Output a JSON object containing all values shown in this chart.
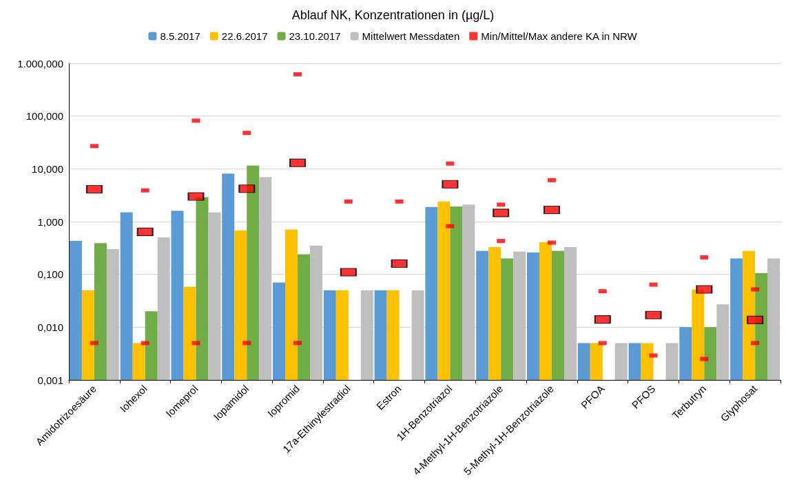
{
  "chart_data": {
    "type": "bar",
    "title": "Ablauf NK, Konzentrationen in (µg/L)",
    "categories": [
      "Amidotrizoesäure",
      "Iohexol",
      "Iomeprol",
      "Iopamidol",
      "Iopromid",
      "17a-Ethinylestradiol",
      "Estron",
      "1H-Benzotriazol",
      "4-Methyl-1H-Benzotriazole",
      "5-Methyl-1H-Benzotriazole",
      "PFOA",
      "PFOS",
      "Terbutryn",
      "Glyphosat"
    ],
    "series": [
      {
        "name": "8.5.2017",
        "color": "#5b9bd5",
        "values": [
          0.43,
          1.5,
          1.6,
          8.1,
          0.07,
          0.05,
          0.05,
          1.9,
          0.28,
          0.26,
          0.005,
          0.005,
          0.01,
          0.2
        ]
      },
      {
        "name": "22.6.2017",
        "color": "#ffc000",
        "values": [
          0.05,
          0.005,
          0.058,
          0.68,
          0.71,
          0.05,
          0.05,
          2.4,
          0.33,
          0.41,
          0.005,
          0.005,
          0.052,
          0.28
        ]
      },
      {
        "name": "23.10.2017",
        "color": "#70ad47",
        "values": [
          0.39,
          0.02,
          2.9,
          11.6,
          0.24,
          null,
          null,
          1.94,
          0.2,
          0.28,
          null,
          null,
          0.01,
          0.106
        ]
      },
      {
        "name": "Mittelwert Messdaten",
        "color": "#bfbfbf",
        "values": [
          0.3,
          0.5,
          1.5,
          7.0,
          0.35,
          0.05,
          0.05,
          2.1,
          0.27,
          0.33,
          0.005,
          0.005,
          0.027,
          0.2
        ]
      },
      {
        "name": "Min/Mittel/Max andere KA in NRW",
        "type": "scatter",
        "color": "#ff0000",
        "x": [
          "Amidotrizoesäure",
          "Amidotrizoesäure",
          "Iohexol",
          "Iohexol",
          "Iomeprol",
          "Iomeprol",
          "Iopamidol",
          "Iopamidol",
          "Iopromid",
          "Iopromid",
          "17a-Ethinylestradiol",
          "Estron",
          "1H-Benzotriazol",
          "1H-Benzotriazol",
          "4-Methyl-1H-Benzotriazole",
          "4-Methyl-1H-Benzotriazole",
          "5-Methyl-1H-Benzotriazole",
          "5-Methyl-1H-Benzotriazole",
          "PFOA",
          "PFOA",
          "PFOS",
          "PFOS",
          "Terbutryn",
          "Terbutryn",
          "Glyphosat",
          "Glyphosat"
        ],
        "values": [
          0.005,
          27,
          0.005,
          3.9,
          0.005,
          82,
          0.005,
          48,
          0.005,
          620,
          2.4,
          2.4,
          0.82,
          12.6,
          0.43,
          2.1,
          0.4,
          6.1,
          0.005,
          0.048,
          0.0029,
          0.064,
          0.0025,
          0.21,
          0.005,
          0.052
        ]
      },
      {
        "type": "scatter",
        "color": "#ff0000",
        "x": [
          "Amidotrizoesäure",
          "Iohexol",
          "Iomeprol",
          "Iopamidol",
          "Iopromid",
          "17a-Ethinylestradiol",
          "Estron",
          "1H-Benzotriazol",
          "4-Methyl-1H-Benzotriazole",
          "5-Methyl-1H-Benzotriazole",
          "PFOA",
          "PFOS",
          "Terbutryn",
          "Glyphosat"
        ],
        "values": [
          4.1,
          0.64,
          3.0,
          4.2,
          13,
          0.11,
          0.16,
          5.1,
          1.46,
          1.67,
          0.014,
          0.017,
          0.052,
          0.0137
        ]
      }
    ],
    "log": "y",
    "ylim": [
      0.001,
      1000
    ],
    "yticks": [
      {
        "value": 0.001,
        "label": "0,001"
      },
      {
        "value": 0.01,
        "label": "0,010"
      },
      {
        "value": 0.1,
        "label": "0,100"
      },
      {
        "value": 1,
        "label": "1,000"
      },
      {
        "value": 10,
        "label": "10,000"
      },
      {
        "value": 100,
        "label": "100,000"
      },
      {
        "value": 1000,
        "label": "1.000,000"
      }
    ],
    "grid": "y",
    "legend": "top",
    "marker": "square"
  }
}
